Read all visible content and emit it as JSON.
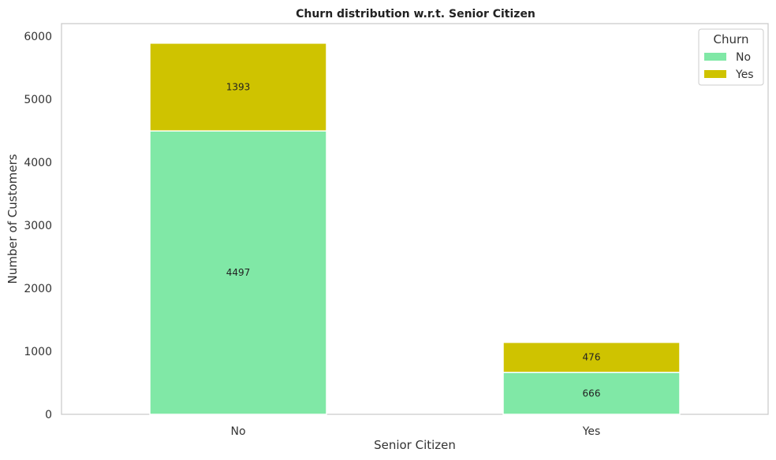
{
  "chart_data": {
    "type": "bar",
    "stacked": true,
    "title": "Churn distribution w.r.t. Senior Citizen",
    "xlabel": "Senior Citizen",
    "ylabel": "Number of Customers",
    "categories": [
      "No",
      "Yes"
    ],
    "series": [
      {
        "name": "No",
        "values": [
          4497,
          666
        ],
        "color": "#80e8a6"
      },
      {
        "name": "Yes",
        "values": [
          1393,
          476
        ],
        "color": "#cfc300"
      }
    ],
    "ylim": [
      0,
      6200
    ],
    "yticks": [
      0,
      1000,
      2000,
      3000,
      4000,
      5000,
      6000
    ],
    "legend": {
      "title": "Churn",
      "placement": "top-right"
    },
    "grid": false
  }
}
